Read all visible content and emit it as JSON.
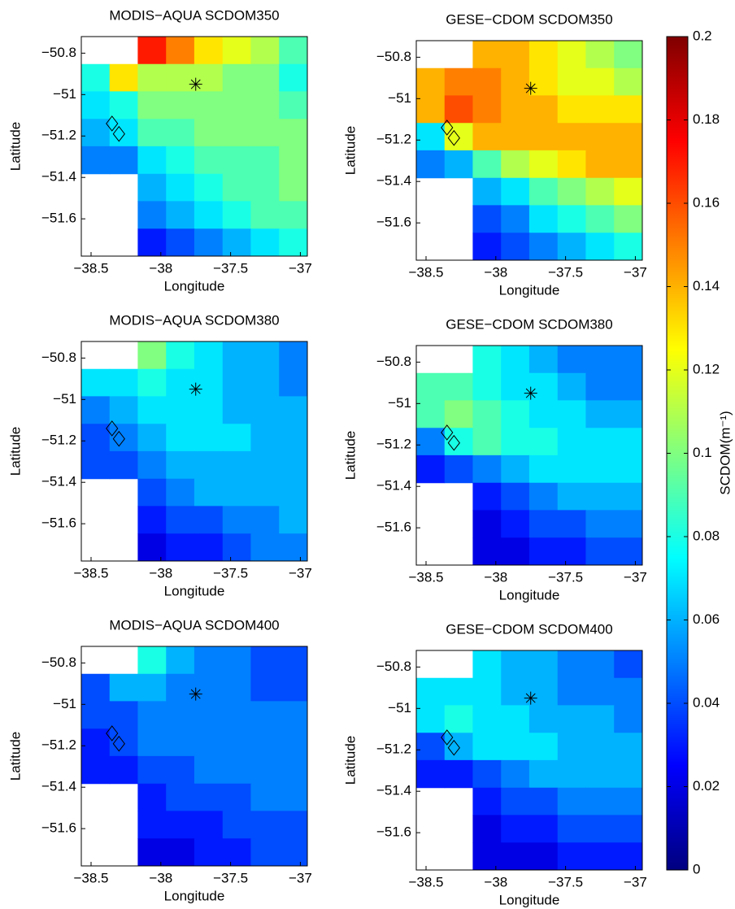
{
  "chart_data": [
    {
      "type": "heatmap",
      "title": "MODIS−AQUA SCDOM350",
      "xlabel": "Longitude",
      "ylabel": "Latitude",
      "x": [
        -38.469,
        -38.266,
        -38.064,
        -37.861,
        -37.659,
        -37.456,
        -37.254,
        -37.051
      ],
      "y": [
        -50.786,
        -50.919,
        -51.051,
        -51.184,
        -51.316,
        -51.449,
        -51.581,
        -51.714
      ],
      "values": [
        [
          null,
          null,
          0.17,
          0.15,
          0.13,
          0.12,
          0.11,
          0.09
        ],
        [
          0.08,
          0.13,
          0.11,
          0.11,
          0.11,
          0.1,
          0.1,
          0.08
        ],
        [
          0.07,
          0.08,
          0.1,
          0.1,
          0.1,
          0.1,
          0.1,
          0.09
        ],
        [
          0.06,
          0.07,
          0.09,
          0.09,
          0.1,
          0.1,
          0.1,
          0.1
        ],
        [
          0.05,
          0.05,
          0.07,
          0.08,
          0.09,
          0.09,
          0.09,
          0.1
        ],
        [
          null,
          null,
          0.06,
          0.07,
          0.08,
          0.09,
          0.09,
          0.1
        ],
        [
          null,
          null,
          0.05,
          0.06,
          0.07,
          0.08,
          0.09,
          0.09
        ],
        [
          null,
          null,
          0.03,
          0.04,
          0.05,
          0.06,
          0.07,
          0.08
        ]
      ],
      "xlim": [
        -38.57,
        -36.95
      ],
      "ylim": [
        -51.78,
        -50.72
      ],
      "xticks": [
        {
          "value": -38.5,
          "label": "−38.5"
        },
        {
          "value": -38,
          "label": "−38"
        },
        {
          "value": -37.5,
          "label": "−37.5"
        },
        {
          "value": -37,
          "label": "−37"
        }
      ],
      "yticks": [
        {
          "value": -51.6,
          "label": "−51.6"
        },
        {
          "value": -51.4,
          "label": "−51.4"
        },
        {
          "value": -51.2,
          "label": "−51.2"
        },
        {
          "value": -51,
          "label": "−51"
        },
        {
          "value": -50.8,
          "label": "−50.8"
        }
      ]
    },
    {
      "type": "heatmap",
      "title": "GESE−CDOM SCDOM350",
      "xlabel": "Longitude",
      "ylabel": "Latitude",
      "x": [
        -38.469,
        -38.266,
        -38.064,
        -37.861,
        -37.659,
        -37.456,
        -37.254,
        -37.051
      ],
      "y": [
        -50.786,
        -50.919,
        -51.051,
        -51.184,
        -51.316,
        -51.449,
        -51.581,
        -51.714
      ],
      "values": [
        [
          null,
          null,
          0.14,
          0.14,
          0.13,
          0.12,
          0.11,
          0.1
        ],
        [
          0.14,
          0.15,
          0.15,
          0.14,
          0.13,
          0.12,
          0.12,
          0.11
        ],
        [
          0.14,
          0.16,
          0.15,
          0.14,
          0.14,
          0.13,
          0.13,
          0.13
        ],
        [
          0.07,
          0.12,
          0.14,
          0.14,
          0.14,
          0.14,
          0.14,
          0.14
        ],
        [
          0.05,
          0.06,
          0.09,
          0.11,
          0.12,
          0.13,
          0.14,
          0.14
        ],
        [
          null,
          null,
          0.06,
          0.07,
          0.09,
          0.1,
          0.11,
          0.12
        ],
        [
          null,
          null,
          0.04,
          0.05,
          0.07,
          0.08,
          0.09,
          0.1
        ],
        [
          null,
          null,
          0.03,
          0.04,
          0.05,
          0.06,
          0.07,
          0.08
        ]
      ],
      "xlim": [
        -38.57,
        -36.95
      ],
      "ylim": [
        -51.78,
        -50.72
      ],
      "xticks": [
        {
          "value": -38.5,
          "label": "−38.5"
        },
        {
          "value": -38,
          "label": "−38"
        },
        {
          "value": -37.5,
          "label": "−37.5"
        },
        {
          "value": -37,
          "label": "−37"
        }
      ],
      "yticks": [
        {
          "value": -51.6,
          "label": "−51.6"
        },
        {
          "value": -51.4,
          "label": "−51.4"
        },
        {
          "value": -51.2,
          "label": "−51.2"
        },
        {
          "value": -51,
          "label": "−51"
        },
        {
          "value": -50.8,
          "label": "−50.8"
        }
      ]
    },
    {
      "type": "heatmap",
      "title": "MODIS−AQUA SCDOM380",
      "xlabel": "Longitude",
      "ylabel": "Latitude",
      "x": [
        -38.469,
        -38.266,
        -38.064,
        -37.861,
        -37.659,
        -37.456,
        -37.254,
        -37.051
      ],
      "y": [
        -50.786,
        -50.919,
        -51.051,
        -51.184,
        -51.316,
        -51.449,
        -51.581,
        -51.714
      ],
      "values": [
        [
          null,
          null,
          0.1,
          0.08,
          0.07,
          0.06,
          0.06,
          0.05
        ],
        [
          0.07,
          0.07,
          0.08,
          0.07,
          0.07,
          0.06,
          0.06,
          0.05
        ],
        [
          0.05,
          0.06,
          0.07,
          0.07,
          0.07,
          0.06,
          0.06,
          0.06
        ],
        [
          0.04,
          0.05,
          0.06,
          0.07,
          0.07,
          0.07,
          0.06,
          0.06
        ],
        [
          0.04,
          0.04,
          0.05,
          0.06,
          0.06,
          0.06,
          0.06,
          0.06
        ],
        [
          null,
          null,
          0.04,
          0.05,
          0.06,
          0.06,
          0.06,
          0.06
        ],
        [
          null,
          null,
          0.03,
          0.04,
          0.04,
          0.05,
          0.05,
          0.06
        ],
        [
          null,
          null,
          0.02,
          0.03,
          0.03,
          0.04,
          0.05,
          0.05
        ]
      ],
      "xlim": [
        -38.57,
        -36.95
      ],
      "ylim": [
        -51.78,
        -50.72
      ],
      "xticks": [
        {
          "value": -38.5,
          "label": "−38.5"
        },
        {
          "value": -38,
          "label": "−38"
        },
        {
          "value": -37.5,
          "label": "−37.5"
        },
        {
          "value": -37,
          "label": "−37"
        }
      ],
      "yticks": [
        {
          "value": -51.6,
          "label": "−51.6"
        },
        {
          "value": -51.4,
          "label": "−51.4"
        },
        {
          "value": -51.2,
          "label": "−51.2"
        },
        {
          "value": -51,
          "label": "−51"
        },
        {
          "value": -50.8,
          "label": "−50.8"
        }
      ]
    },
    {
      "type": "heatmap",
      "title": "GESE−CDOM SCDOM380",
      "xlabel": "Longitude",
      "ylabel": "Latitude",
      "x": [
        -38.469,
        -38.266,
        -38.064,
        -37.861,
        -37.659,
        -37.456,
        -37.254,
        -37.051
      ],
      "y": [
        -50.786,
        -50.919,
        -51.051,
        -51.184,
        -51.316,
        -51.449,
        -51.581,
        -51.714
      ],
      "values": [
        [
          null,
          null,
          0.08,
          0.07,
          0.06,
          0.05,
          0.05,
          0.05
        ],
        [
          0.09,
          0.09,
          0.08,
          0.07,
          0.07,
          0.06,
          0.05,
          0.05
        ],
        [
          0.09,
          0.1,
          0.09,
          0.08,
          0.07,
          0.07,
          0.06,
          0.06
        ],
        [
          0.05,
          0.08,
          0.09,
          0.08,
          0.08,
          0.07,
          0.07,
          0.07
        ],
        [
          0.03,
          0.04,
          0.05,
          0.06,
          0.07,
          0.07,
          0.07,
          0.07
        ],
        [
          null,
          null,
          0.03,
          0.04,
          0.05,
          0.06,
          0.06,
          0.06
        ],
        [
          null,
          null,
          0.02,
          0.03,
          0.04,
          0.04,
          0.05,
          0.05
        ],
        [
          null,
          null,
          0.02,
          0.02,
          0.03,
          0.03,
          0.04,
          0.04
        ]
      ],
      "xlim": [
        -38.57,
        -36.95
      ],
      "ylim": [
        -51.78,
        -50.72
      ],
      "xticks": [
        {
          "value": -38.5,
          "label": "−38.5"
        },
        {
          "value": -38,
          "label": "−38"
        },
        {
          "value": -37.5,
          "label": "−37.5"
        },
        {
          "value": -37,
          "label": "−37"
        }
      ],
      "yticks": [
        {
          "value": -51.6,
          "label": "−51.6"
        },
        {
          "value": -51.4,
          "label": "−51.4"
        },
        {
          "value": -51.2,
          "label": "−51.2"
        },
        {
          "value": -51,
          "label": "−51"
        },
        {
          "value": -50.8,
          "label": "−50.8"
        }
      ]
    },
    {
      "type": "heatmap",
      "title": "MODIS−AQUA SCDOM400",
      "xlabel": "Longitude",
      "ylabel": "Latitude",
      "x": [
        -38.469,
        -38.266,
        -38.064,
        -37.861,
        -37.659,
        -37.456,
        -37.254,
        -37.051
      ],
      "y": [
        -50.786,
        -50.919,
        -51.051,
        -51.184,
        -51.316,
        -51.449,
        -51.581,
        -51.714
      ],
      "values": [
        [
          null,
          null,
          0.08,
          0.06,
          0.05,
          0.05,
          0.04,
          0.04
        ],
        [
          0.04,
          0.06,
          0.06,
          0.05,
          0.05,
          0.05,
          0.04,
          0.04
        ],
        [
          0.04,
          0.04,
          0.05,
          0.05,
          0.05,
          0.05,
          0.05,
          0.05
        ],
        [
          0.03,
          0.04,
          0.05,
          0.05,
          0.05,
          0.05,
          0.05,
          0.05
        ],
        [
          0.03,
          0.03,
          0.04,
          0.04,
          0.05,
          0.05,
          0.05,
          0.05
        ],
        [
          null,
          null,
          0.03,
          0.04,
          0.04,
          0.04,
          0.05,
          0.05
        ],
        [
          null,
          null,
          0.03,
          0.03,
          0.03,
          0.04,
          0.04,
          0.04
        ],
        [
          null,
          null,
          0.02,
          0.02,
          0.03,
          0.03,
          0.04,
          0.04
        ]
      ],
      "xlim": [
        -38.57,
        -36.95
      ],
      "ylim": [
        -51.78,
        -50.72
      ],
      "xticks": [
        {
          "value": -38.5,
          "label": "−38.5"
        },
        {
          "value": -38,
          "label": "−38"
        },
        {
          "value": -37.5,
          "label": "−37.5"
        },
        {
          "value": -37,
          "label": "−37"
        }
      ],
      "yticks": [
        {
          "value": -51.6,
          "label": "−51.6"
        },
        {
          "value": -51.4,
          "label": "−51.4"
        },
        {
          "value": -51.2,
          "label": "−51.2"
        },
        {
          "value": -51,
          "label": "−51"
        },
        {
          "value": -50.8,
          "label": "−50.8"
        }
      ]
    },
    {
      "type": "heatmap",
      "title": "GESE−CDOM SCDOM400",
      "xlabel": "Longitude",
      "ylabel": "Latitude",
      "x": [
        -38.469,
        -38.266,
        -38.064,
        -37.861,
        -37.659,
        -37.456,
        -37.254,
        -37.051
      ],
      "y": [
        -50.786,
        -50.919,
        -51.051,
        -51.184,
        -51.316,
        -51.449,
        -51.581,
        -51.714
      ],
      "values": [
        [
          null,
          null,
          0.07,
          0.06,
          0.06,
          0.05,
          0.05,
          0.04
        ],
        [
          0.07,
          0.07,
          0.07,
          0.06,
          0.06,
          0.05,
          0.05,
          0.05
        ],
        [
          0.07,
          0.08,
          0.07,
          0.07,
          0.06,
          0.06,
          0.06,
          0.05
        ],
        [
          0.04,
          0.06,
          0.07,
          0.07,
          0.07,
          0.06,
          0.06,
          0.06
        ],
        [
          0.03,
          0.03,
          0.04,
          0.05,
          0.06,
          0.06,
          0.06,
          0.06
        ],
        [
          null,
          null,
          0.03,
          0.04,
          0.04,
          0.05,
          0.05,
          0.05
        ],
        [
          null,
          null,
          0.02,
          0.03,
          0.03,
          0.04,
          0.04,
          0.04
        ],
        [
          null,
          null,
          0.02,
          0.02,
          0.02,
          0.03,
          0.03,
          0.03
        ]
      ],
      "xlim": [
        -38.57,
        -36.95
      ],
      "ylim": [
        -51.78,
        -50.72
      ],
      "xticks": [
        {
          "value": -38.5,
          "label": "−38.5"
        },
        {
          "value": -38,
          "label": "−38"
        },
        {
          "value": -37.5,
          "label": "−37.5"
        },
        {
          "value": -37,
          "label": "−37"
        }
      ],
      "yticks": [
        {
          "value": -51.6,
          "label": "−51.6"
        },
        {
          "value": -51.4,
          "label": "−51.4"
        },
        {
          "value": -51.2,
          "label": "−51.2"
        },
        {
          "value": -51,
          "label": "−51"
        },
        {
          "value": -50.8,
          "label": "−50.8"
        }
      ]
    }
  ],
  "markers": {
    "x": [
      -37.75,
      -38.35,
      -38.3
    ],
    "y": [
      -50.95,
      -51.14,
      -51.19
    ],
    "shapes": [
      "asterisk",
      "diamond",
      "diamond"
    ]
  },
  "colorbar": {
    "label": "SCDOM(m⁻¹)",
    "colormap": "jet",
    "clim": [
      0,
      0.2
    ],
    "ticks": [
      0,
      0.02,
      0.04,
      0.06,
      0.08,
      0.1,
      0.12,
      0.14,
      0.16,
      0.18,
      0.2
    ]
  }
}
